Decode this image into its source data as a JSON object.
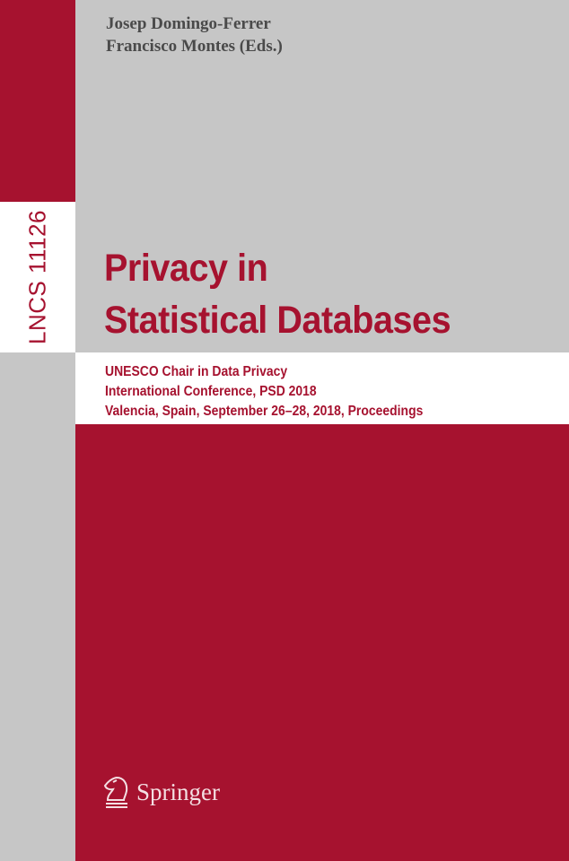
{
  "cover": {
    "authors": [
      "Josep Domingo-Ferrer",
      "Francisco Montes (Eds.)"
    ],
    "series": "LNCS 11126",
    "title": [
      "Privacy in",
      "Statistical Databases"
    ],
    "subtitle": [
      "UNESCO Chair in Data Privacy",
      "International Conference, PSD 2018",
      "Valencia, Spain, September 26–28, 2018, Proceedings"
    ],
    "publisher": "Springer",
    "publisher_icon": "springer-horse-icon",
    "colors": {
      "red": "#a6122f",
      "gray": "#c6c6c6",
      "white": "#ffffff"
    }
  }
}
